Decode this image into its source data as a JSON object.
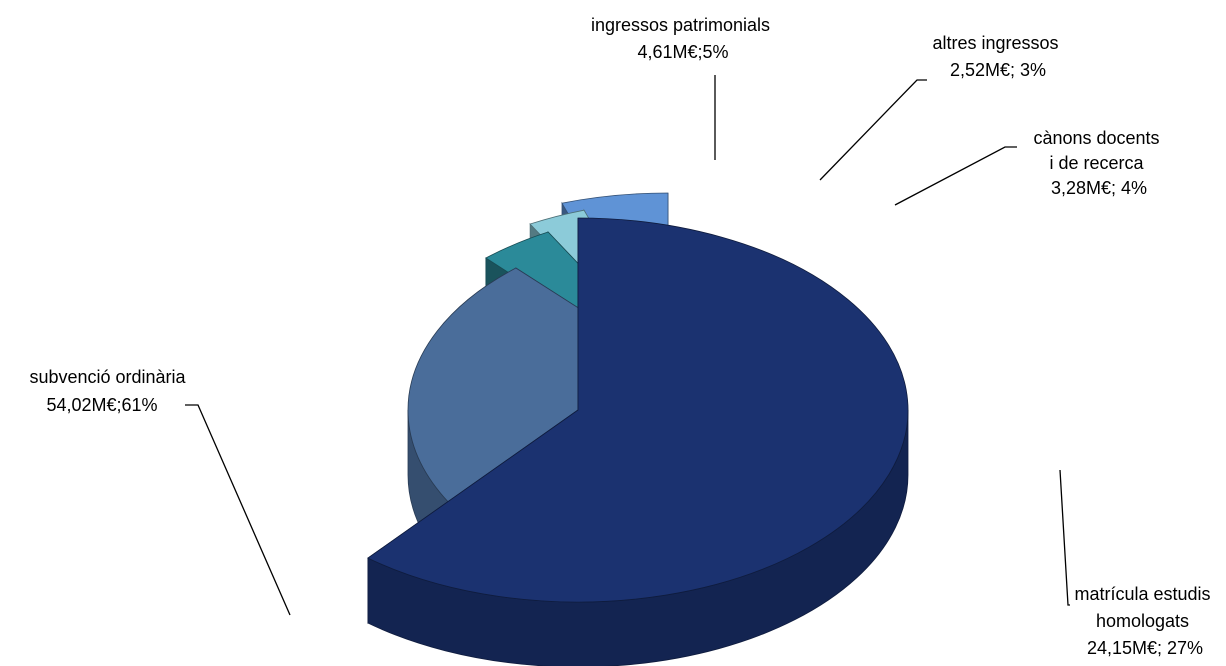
{
  "chart_data": {
    "type": "pie",
    "categories": [
      "subvenció ordinària",
      "matrícula estudis homologats",
      "cànons docents i de recerca",
      "altres ingressos",
      "ingressos patrimonials"
    ],
    "values": [
      54.02,
      24.15,
      3.28,
      2.52,
      4.61
    ],
    "percentages": [
      61,
      27,
      4,
      3,
      5
    ],
    "unit": "M€",
    "exploded": true,
    "style": "3d",
    "colors": [
      "#1b3270",
      "#4a6d9a",
      "#2b8a99",
      "#8ccbd9",
      "#5f93d6"
    ],
    "data_labels": [
      {
        "lines": [
          "subvenció ordinària",
          "54,02M€;61%"
        ]
      },
      {
        "lines": [
          "matrícula estudis",
          "homologats",
          "24,15M€; 27%"
        ]
      },
      {
        "lines": [
          "cànons docents",
          "i de recerca",
          "3,28M€; 4%"
        ]
      },
      {
        "lines": [
          "altres ingressos",
          "2,52M€; 3%"
        ]
      },
      {
        "lines": [
          "ingressos patrimonials",
          "4,61M€;5%"
        ]
      }
    ]
  }
}
